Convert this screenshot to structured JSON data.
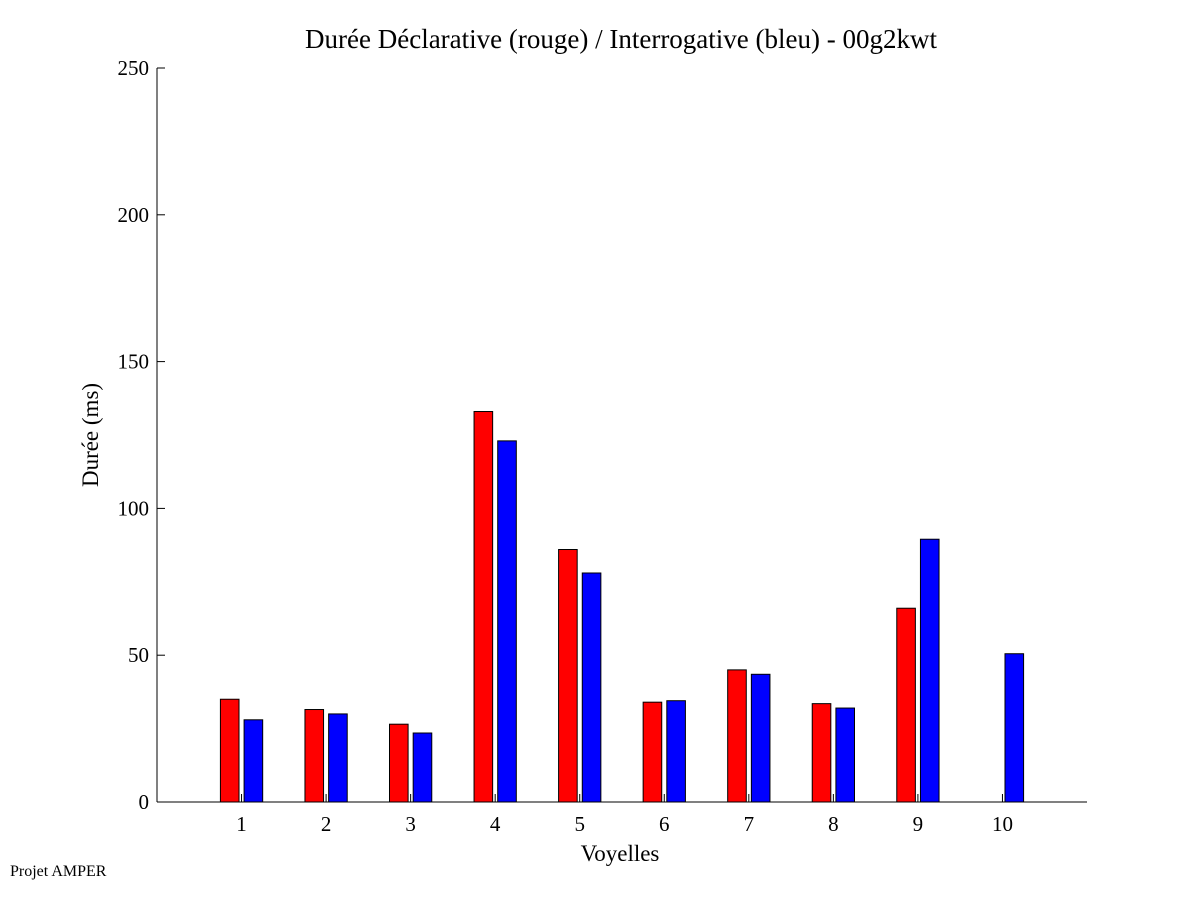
{
  "chart_data": {
    "type": "bar",
    "title": "Durée Déclarative (rouge) / Interrogative (bleu) - 00g2kwt",
    "xlabel": "Voyelles",
    "ylabel": "Durée (ms)",
    "ylim": [
      0,
      250
    ],
    "yticks": [
      0,
      50,
      100,
      150,
      200,
      250
    ],
    "xlim": [
      0,
      11
    ],
    "categories": [
      "1",
      "2",
      "3",
      "4",
      "5",
      "6",
      "7",
      "8",
      "9",
      "10"
    ],
    "series": [
      {
        "color": "#ff0000",
        "values": [
          35,
          31.5,
          26.5,
          133,
          86,
          34,
          45,
          33.5,
          66,
          0
        ]
      },
      {
        "color": "#0000ff",
        "values": [
          28,
          30,
          23.5,
          123,
          78,
          34.5,
          43.5,
          32,
          89.5,
          50.5
        ]
      }
    ],
    "grid": false,
    "legend": "none"
  },
  "footer": {
    "text": "Projet AMPER"
  }
}
